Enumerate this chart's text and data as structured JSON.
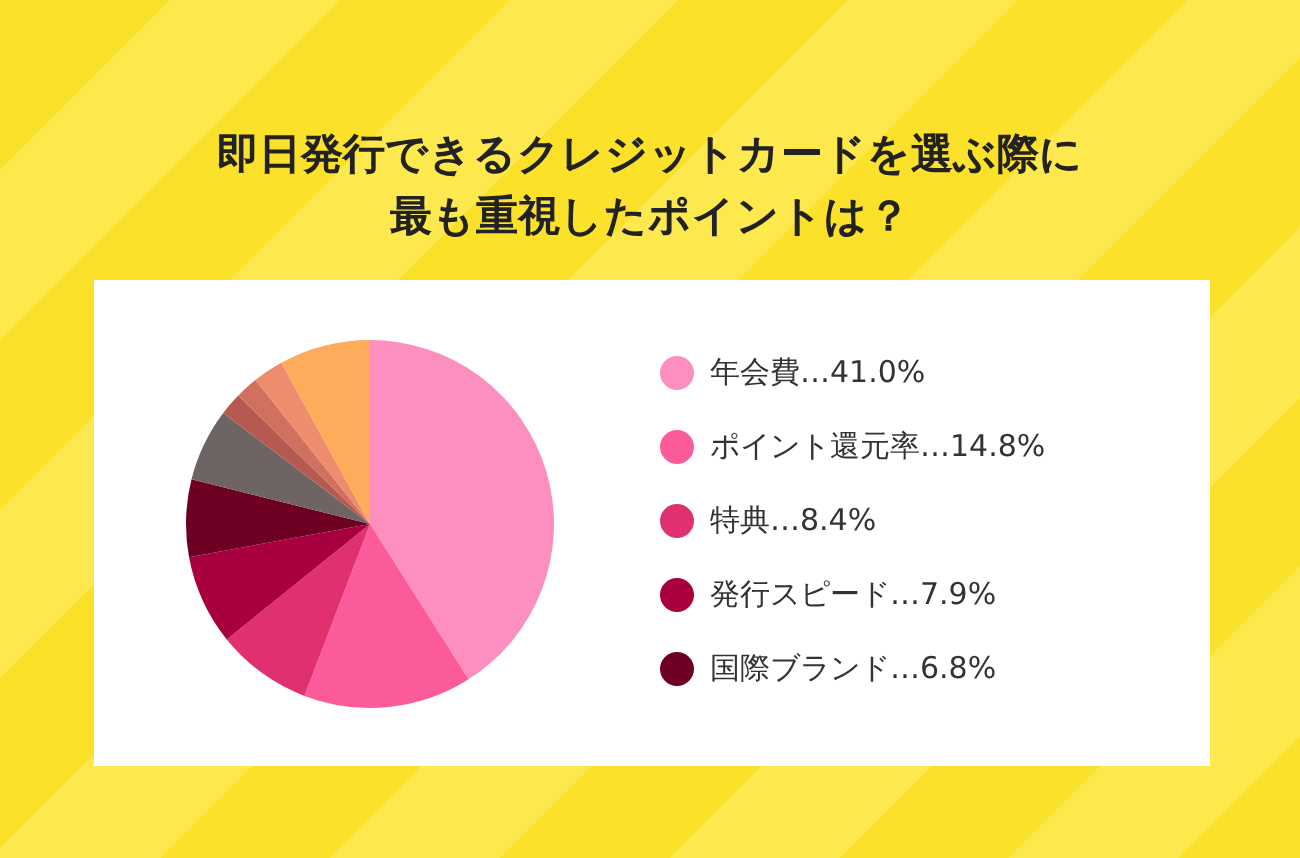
{
  "chart_data": {
    "type": "pie",
    "title": "即日発行できるクレジットカードを選ぶ際に最も重視したポイントは？",
    "categories": [
      "年会費",
      "ポイント還元率",
      "特典",
      "発行スピード",
      "国際ブランド",
      null,
      null,
      null,
      null,
      null
    ],
    "values": [
      41.0,
      14.8,
      8.4,
      7.9,
      6.8,
      6.4,
      2.0,
      2.0,
      2.7,
      8.0
    ],
    "value_labels": [
      "…41.0%",
      "…14.8%",
      "…8.4%",
      "…7.9%",
      "…6.8%",
      null,
      null,
      null,
      null,
      null
    ],
    "colors": [
      "#fd8fc0",
      "#fb5b9b",
      "#e0306f",
      "#a8003f",
      "#6e0024",
      "#6e6464",
      "#b45a50",
      "#d0705e",
      "#f08c6e",
      "#fdac5c"
    ],
    "legend": "right"
  }
}
